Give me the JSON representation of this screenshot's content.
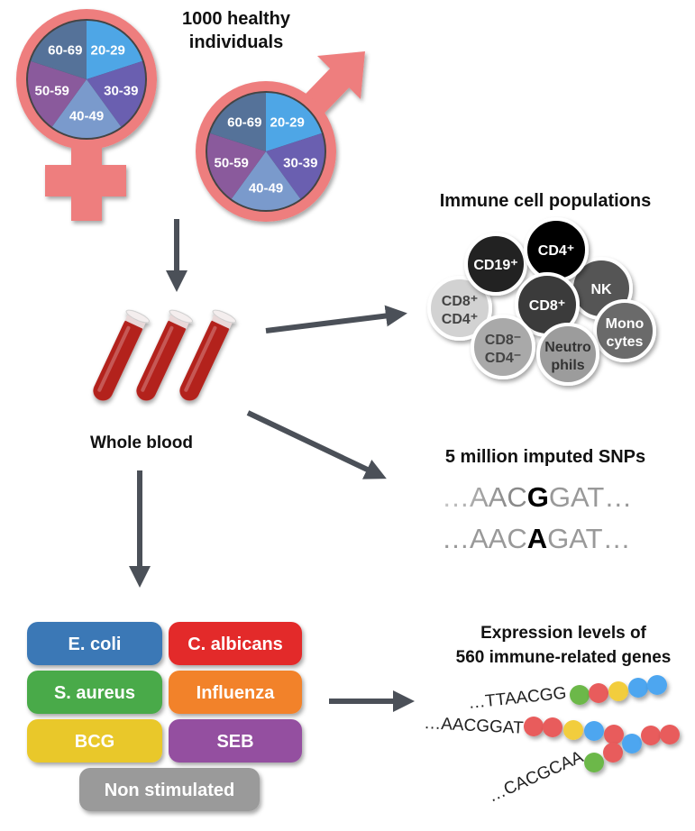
{
  "cohort": {
    "title_line1": "1000 healthy",
    "title_line2": "individuals",
    "symbol_color": "#ee7e7e",
    "age_groups": [
      {
        "label": "20-29",
        "color": "#4ea6e6"
      },
      {
        "label": "30-39",
        "color": "#6a5fb0"
      },
      {
        "label": "40-49",
        "color": "#7a9acc"
      },
      {
        "label": "50-59",
        "color": "#8a5a9c"
      },
      {
        "label": "60-69",
        "color": "#557299"
      }
    ]
  },
  "sample": {
    "label": "Whole blood",
    "blood_color": "#b3201d"
  },
  "immune_cells": {
    "title": "Immune cell populations",
    "cells": [
      {
        "line1": "CD8⁺",
        "line2": "CD4⁺",
        "color": "#d2d2d2",
        "text": "#444"
      },
      {
        "line1": "CD19⁺",
        "line2": "",
        "color": "#222222",
        "text": "#fff"
      },
      {
        "line1": "NK",
        "line2": "",
        "color": "#555555",
        "text": "#fff"
      },
      {
        "line1": "CD4⁺",
        "line2": "",
        "color": "#000000",
        "text": "#fff"
      },
      {
        "line1": "CD8⁺",
        "line2": "",
        "color": "#3a3a3a",
        "text": "#fff"
      },
      {
        "line1": "CD8⁻",
        "line2": "CD4⁻",
        "color": "#a9a9a9",
        "text": "#444"
      },
      {
        "line1": "Mono",
        "line2": "cytes",
        "color": "#6a6a6a",
        "text": "#fff"
      },
      {
        "line1": "Neutro",
        "line2": "phils",
        "color": "#9c9c9c",
        "text": "#333"
      }
    ]
  },
  "snps": {
    "title": "5 million imputed SNPs",
    "seq1": {
      "prefix": "…AAC",
      "variant": "G",
      "suffix": "GAT…"
    },
    "seq2": {
      "prefix": "…AAC",
      "variant": "A",
      "suffix": "GAT…"
    }
  },
  "stimuli": [
    {
      "label": "E. coli",
      "color": "#3a78b6"
    },
    {
      "label": "C. albicans",
      "color": "#e32a2a"
    },
    {
      "label": "S. aureus",
      "color": "#49aa49"
    },
    {
      "label": "Influenza",
      "color": "#f28229"
    },
    {
      "label": "BCG",
      "color": "#e9c82b"
    },
    {
      "label": "SEB",
      "color": "#9450a0"
    },
    {
      "label": "Non stimulated",
      "color": "#9a9a9a"
    }
  ],
  "expression": {
    "title_line1": "Expression levels of",
    "title_line2": "560 immune-related genes",
    "sequences": [
      {
        "text": "…TTAACGG",
        "beads": [
          "#6cb84a",
          "#e85c5c",
          "#f2cd3c",
          "#4ea6f0",
          "#4ea6f0"
        ]
      },
      {
        "text": "…AACGGAT",
        "beads": [
          "#e85c5c",
          "#e85c5c",
          "#f2cd3c",
          "#4ea6f0",
          "#e85c5c"
        ]
      },
      {
        "text": "…CACGCAA",
        "beads": [
          "#6cb84a",
          "#e85c5c",
          "#4ea6f0",
          "#e85c5c",
          "#e85c5c"
        ]
      }
    ]
  },
  "arrow_color": "#4b5058"
}
